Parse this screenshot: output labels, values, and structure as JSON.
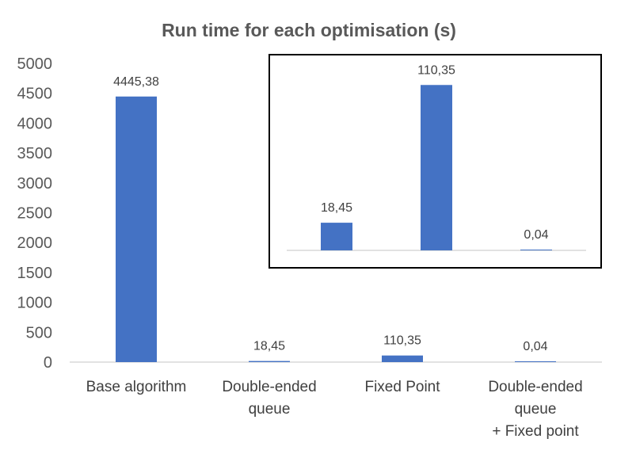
{
  "chart_data": [
    {
      "type": "bar",
      "title": "Run time for each optimisation (s)",
      "categories": [
        [
          "Base algorithm"
        ],
        [
          "Double-ended",
          "queue"
        ],
        [
          "Fixed Point"
        ],
        [
          "Double-ended",
          "queue",
          "+ Fixed point"
        ]
      ],
      "values": [
        4445.38,
        18.45,
        110.35,
        0.04
      ],
      "data_labels": [
        "4445,38",
        "18,45",
        "110,35",
        "0,04"
      ],
      "ylim": [
        0,
        5000
      ],
      "y_ticks": [
        0,
        500,
        1000,
        1500,
        2000,
        2500,
        3000,
        3500,
        4000,
        4500,
        5000
      ],
      "xlabel": "",
      "ylabel": "",
      "grid": false,
      "legend": "none",
      "bar_color": "#4472c4"
    },
    {
      "type": "bar",
      "title": "",
      "categories": [
        "Double-ended queue",
        "Fixed Point",
        "Double-ended queue + Fixed point"
      ],
      "values": [
        18.45,
        110.35,
        0.04
      ],
      "data_labels": [
        "18,45",
        "110,35",
        "0,04"
      ],
      "ylim": [
        0,
        120
      ],
      "show_axis_labels": false,
      "grid": false,
      "legend": "none",
      "bar_color": "#4472c4",
      "placement": "inset top-right"
    }
  ]
}
